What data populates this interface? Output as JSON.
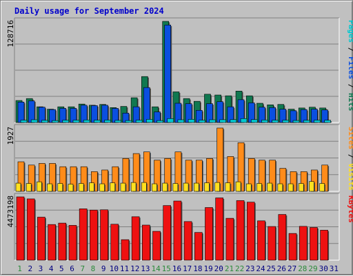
{
  "chart_data": {
    "type": "bar",
    "title": "Daily usage for September 2024",
    "days": [
      "1",
      "2",
      "3",
      "4",
      "5",
      "6",
      "7",
      "8",
      "9",
      "10",
      "11",
      "12",
      "13",
      "14",
      "15",
      "16",
      "17",
      "18",
      "19",
      "20",
      "21",
      "22",
      "23",
      "24",
      "25",
      "26",
      "27",
      "28",
      "29",
      "30",
      "31"
    ],
    "weekend_days": [
      "1",
      "7",
      "8",
      "14",
      "15",
      "21",
      "22",
      "28",
      "29"
    ],
    "colors": {
      "pages": "#00c8d0",
      "files": "#0a4fe0",
      "hits": "#107850",
      "visits": "#ffe020",
      "sites": "#ff8c1a",
      "kbytes": "#ee1111",
      "weekday_label": "#000080",
      "weekend_label": "#2a8a3a"
    },
    "panels": [
      {
        "id": "hits_panel",
        "ymax_label": "128716",
        "ymax": 128716,
        "right_labels": [
          {
            "text": "Pages",
            "color": "#00c8d0"
          },
          {
            "text": " / ",
            "color": "#000000"
          },
          {
            "text": "Files",
            "color": "#0a4fe0"
          },
          {
            "text": " / ",
            "color": "#000000"
          },
          {
            "text": "Hits",
            "color": "#107850"
          }
        ],
        "series": [
          {
            "name": "Hits",
            "color": "#107850",
            "values": [
              28000,
              30500,
              20000,
              17000,
              20000,
              20000,
              23500,
              22000,
              23000,
              19000,
              20500,
              31500,
              58500,
              20000,
              128716,
              39000,
              30500,
              27000,
              36000,
              35000,
              34000,
              40000,
              34000,
              24500,
              22500,
              23000,
              17000,
              18500,
              19500,
              18500,
              0
            ]
          },
          {
            "name": "Files",
            "color": "#0a4fe0",
            "values": [
              26000,
              27500,
              19500,
              16500,
              18000,
              18000,
              22000,
              21500,
              22000,
              18000,
              12000,
              20000,
              44500,
              13500,
              124000,
              24500,
              24000,
              15500,
              24000,
              26500,
              20000,
              29000,
              25000,
              19500,
              19000,
              17000,
              15000,
              16500,
              17000,
              16000,
              0
            ]
          },
          {
            "name": "Pages",
            "color": "#00c8d0",
            "values": [
              3000,
              3500,
              2800,
              2500,
              3000,
              3000,
              3200,
              3000,
              3100,
              2700,
              2500,
              3000,
              4000,
              2500,
              5000,
              3500,
              4000,
              3000,
              3500,
              3600,
              3700,
              5000,
              3700,
              3200,
              3000,
              3000,
              2600,
              2800,
              3000,
              2900,
              0
            ]
          }
        ]
      },
      {
        "id": "visits_panel",
        "ymax_label": "1927",
        "ymax": 1927,
        "right_labels": [
          {
            "text": "Sites",
            "color": "#ff8c1a"
          },
          {
            "text": " / ",
            "color": "#000000"
          },
          {
            "text": "Visits",
            "color": "#ffe020"
          }
        ],
        "series": [
          {
            "name": "Sites",
            "color": "#ff8c1a",
            "values": [
              900,
              800,
              850,
              850,
              750,
              750,
              750,
              600,
              650,
              750,
              1000,
              1150,
              1200,
              950,
              1000,
              1200,
              950,
              950,
              1000,
              1927,
              1060,
              1480,
              1000,
              950,
              950,
              700,
              600,
              600,
              650,
              800,
              0
            ]
          },
          {
            "name": "Visits",
            "color": "#ffe020",
            "values": [
              250,
              240,
              290,
              230,
              240,
              220,
              240,
              260,
              230,
              260,
              250,
              270,
              270,
              230,
              250,
              240,
              250,
              250,
              260,
              270,
              260,
              290,
              230,
              240,
              250,
              230,
              230,
              240,
              300,
              240,
              0
            ]
          }
        ]
      },
      {
        "id": "kbytes_panel",
        "ymax_label": "4473198",
        "ymax": 4473198,
        "right_labels": [
          {
            "text": "KBytes",
            "color": "#ee1111"
          }
        ],
        "series": [
          {
            "name": "KBytes",
            "color": "#ee1111",
            "values": [
              4473198,
              4330000,
              3040000,
              2520000,
              2620000,
              2460000,
              3630000,
              3540000,
              3560000,
              2540000,
              1450000,
              3070000,
              2480000,
              2040000,
              3860000,
              4180000,
              2730000,
              1960000,
              3720000,
              4400000,
              2960000,
              4210000,
              4100000,
              2780000,
              2380000,
              3230000,
              1890000,
              2390000,
              2310000,
              2120000,
              0
            ]
          }
        ]
      }
    ]
  }
}
